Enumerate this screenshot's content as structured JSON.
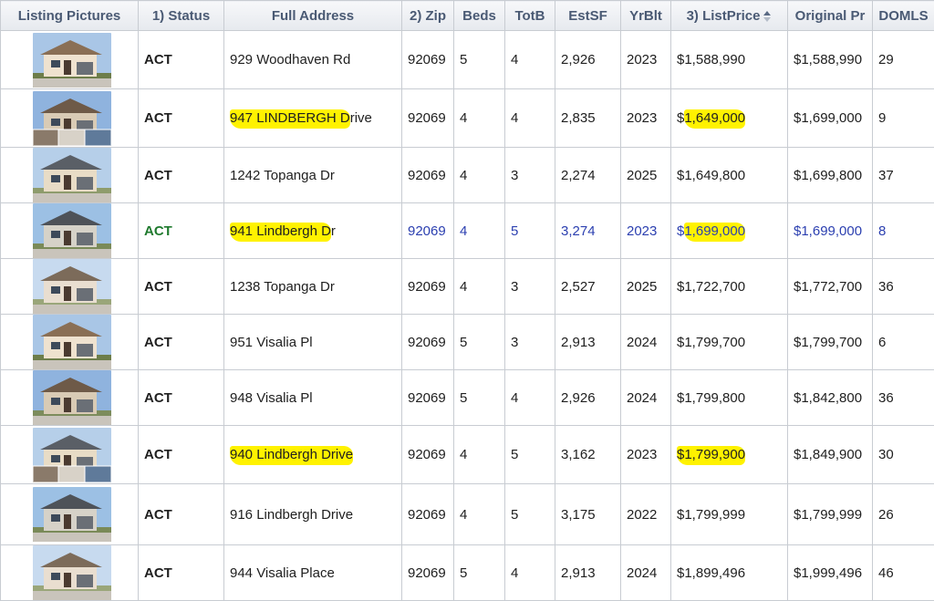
{
  "columns": [
    {
      "key": "pic",
      "label": "Listing Pictures"
    },
    {
      "key": "status",
      "label": "1) Status"
    },
    {
      "key": "address",
      "label": "Full Address"
    },
    {
      "key": "zip",
      "label": "2) Zip"
    },
    {
      "key": "beds",
      "label": "Beds"
    },
    {
      "key": "totb",
      "label": "TotB"
    },
    {
      "key": "estsf",
      "label": "EstSF"
    },
    {
      "key": "yrblt",
      "label": "YrBlt"
    },
    {
      "key": "listprice",
      "label": "3) ListPrice",
      "sort_icon": "sort-up-down-icon"
    },
    {
      "key": "origprice",
      "label": "Original Pr"
    },
    {
      "key": "domls",
      "label": "DOMLS"
    }
  ],
  "colors": {
    "status_green": "#1f7a2e",
    "selected_row_text": "#2b3fb0",
    "highlight_yellow": "#fff200",
    "header_text": "#4a5a74"
  },
  "rows": [
    {
      "status": "ACT",
      "address": "929 Woodhaven Rd",
      "addr_hl": "",
      "addr_rest": "929 Woodhaven Rd",
      "zip": "92069",
      "beds": "5",
      "totb": "4",
      "estsf": "2,926",
      "yrblt": "2023",
      "lp_pre": "$1,588,990",
      "lp_hl": "",
      "origprice": "$1,588,990",
      "domls": "29",
      "selected": false,
      "thumb": "house-photo"
    },
    {
      "status": "ACT",
      "address": "947  LINDBERGH Drive",
      "addr_hl": "947  LINDBERGH D",
      "addr_rest": "rive",
      "zip": "92069",
      "beds": "4",
      "totb": "4",
      "estsf": "2,835",
      "yrblt": "2023",
      "lp_pre": "$",
      "lp_hl": "1,649,000",
      "origprice": "$1,699,000",
      "domls": "9",
      "selected": false,
      "thumb": "house-collage"
    },
    {
      "status": "ACT",
      "address": "1242 Topanga Dr",
      "addr_hl": "",
      "addr_rest": "1242 Topanga Dr",
      "zip": "92069",
      "beds": "4",
      "totb": "3",
      "estsf": "2,274",
      "yrblt": "2025",
      "lp_pre": "$1,649,800",
      "lp_hl": "",
      "origprice": "$1,699,800",
      "domls": "37",
      "selected": false,
      "thumb": "house-photo"
    },
    {
      "status": "ACT",
      "address": "941 Lindbergh Dr",
      "addr_hl": "941 Lindbergh D",
      "addr_rest": "r",
      "zip": "92069",
      "beds": "4",
      "totb": "5",
      "estsf": "3,274",
      "yrblt": "2023",
      "lp_pre": "$",
      "lp_hl": "1,699,000",
      "origprice": "$1,699,000",
      "domls": "8",
      "selected": true,
      "thumb": "house-photo"
    },
    {
      "status": "ACT",
      "address": "1238 Topanga Dr",
      "addr_hl": "",
      "addr_rest": "1238 Topanga Dr",
      "zip": "92069",
      "beds": "4",
      "totb": "3",
      "estsf": "2,527",
      "yrblt": "2025",
      "lp_pre": "$1,722,700",
      "lp_hl": "",
      "origprice": "$1,772,700",
      "domls": "36",
      "selected": false,
      "thumb": "house-photo"
    },
    {
      "status": "ACT",
      "address": "951 Visalia Pl",
      "addr_hl": "",
      "addr_rest": "951 Visalia Pl",
      "zip": "92069",
      "beds": "5",
      "totb": "3",
      "estsf": "2,913",
      "yrblt": "2024",
      "lp_pre": "$1,799,700",
      "lp_hl": "",
      "origprice": "$1,799,700",
      "domls": "6",
      "selected": false,
      "thumb": "house-photo"
    },
    {
      "status": "ACT",
      "address": "948 Visalia Pl",
      "addr_hl": "",
      "addr_rest": "948 Visalia Pl",
      "zip": "92069",
      "beds": "5",
      "totb": "4",
      "estsf": "2,926",
      "yrblt": "2024",
      "lp_pre": "$1,799,800",
      "lp_hl": "",
      "origprice": "$1,842,800",
      "domls": "36",
      "selected": false,
      "thumb": "house-photo"
    },
    {
      "status": "ACT",
      "address": "940  Lindbergh Drive",
      "addr_hl": "940  Lindbergh Drive",
      "addr_rest": "",
      "zip": "92069",
      "beds": "4",
      "totb": "5",
      "estsf": "3,162",
      "yrblt": "2023",
      "lp_pre": "",
      "lp_hl": "$1,799,900",
      "origprice": "$1,849,900",
      "domls": "30",
      "selected": false,
      "thumb": "house-collage"
    },
    {
      "status": "ACT",
      "address": "916  Lindbergh Drive",
      "addr_hl": "",
      "addr_rest": "916  Lindbergh Drive",
      "zip": "92069",
      "beds": "4",
      "totb": "5",
      "estsf": "3,175",
      "yrblt": "2022",
      "lp_pre": "$1,799,999",
      "lp_hl": "",
      "origprice": "$1,799,999",
      "domls": "26",
      "selected": false,
      "thumb": "house-photo"
    },
    {
      "status": "ACT",
      "address": "944  Visalia Place",
      "addr_hl": "",
      "addr_rest": "944  Visalia Place",
      "zip": "92069",
      "beds": "5",
      "totb": "4",
      "estsf": "2,913",
      "yrblt": "2024",
      "lp_pre": "$1,899,496",
      "lp_hl": "",
      "origprice": "$1,999,496",
      "domls": "46",
      "selected": false,
      "thumb": "house-photo"
    }
  ]
}
